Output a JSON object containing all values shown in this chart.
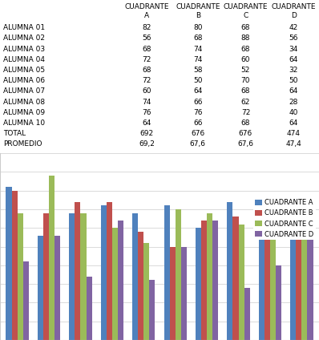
{
  "students": [
    "ALUMNA 01",
    "ALUMNA 02",
    "ALUMNA 03",
    "ALUMNA 04",
    "ALUMNA 05",
    "ALUMNA 06",
    "ALUMNA 07",
    "ALUMNA 08",
    "ALUMNA 09",
    "ALUMNA 10"
  ],
  "cuadrante_a": [
    82,
    56,
    68,
    72,
    68,
    72,
    60,
    74,
    76,
    64
  ],
  "cuadrante_b": [
    80,
    68,
    74,
    74,
    58,
    50,
    64,
    66,
    76,
    66
  ],
  "cuadrante_c": [
    68,
    88,
    68,
    60,
    52,
    70,
    68,
    62,
    72,
    68
  ],
  "cuadrante_d": [
    42,
    56,
    34,
    64,
    32,
    50,
    64,
    28,
    40,
    64
  ],
  "total_a": 692,
  "total_b": 676,
  "total_c": 676,
  "total_d": 474,
  "prom_a": "69,2",
  "prom_b": "67,6",
  "prom_c": "67,6",
  "prom_d": "47,4",
  "color_a": "#4F81BD",
  "color_b": "#C0504D",
  "color_c": "#9BBB59",
  "color_d": "#8064A2",
  "ylim": [
    0,
    100
  ],
  "yticks": [
    0,
    10,
    20,
    30,
    40,
    50,
    60,
    70,
    80,
    90,
    100
  ],
  "table_font": 6.5,
  "chart_font": 6.0
}
